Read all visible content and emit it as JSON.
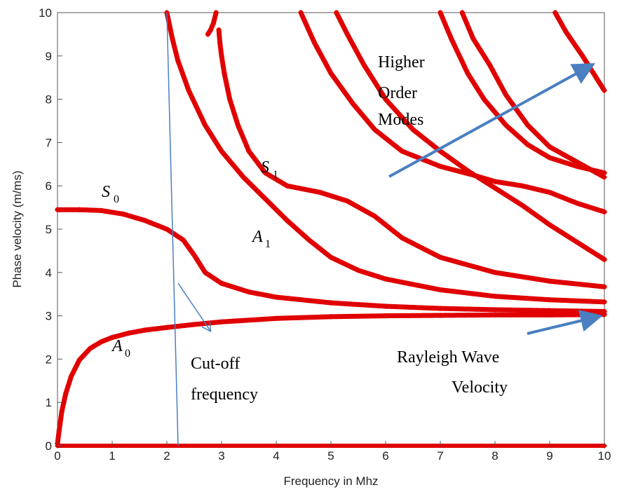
{
  "chart_data": {
    "type": "scatter",
    "xlabel": "Frequency in Mhz",
    "ylabel": "Phase velocity (m/ms)",
    "xlim": [
      0,
      10
    ],
    "ylim": [
      0,
      10
    ],
    "xticks": [
      "0",
      "1",
      "2",
      "3",
      "4",
      "5",
      "6",
      "7",
      "8",
      "9",
      "10"
    ],
    "yticks": [
      "0",
      "1",
      "2",
      "3",
      "4",
      "5",
      "6",
      "7",
      "8",
      "9",
      "10"
    ],
    "grid": false,
    "marker_color": "#e00000",
    "series": [
      {
        "points": [
          [
            0,
            0.05
          ],
          [
            0.03,
            0.35
          ],
          [
            0.08,
            0.8
          ],
          [
            0.15,
            1.2
          ],
          [
            0.25,
            1.6
          ],
          [
            0.4,
            1.98
          ],
          [
            0.6,
            2.25
          ],
          [
            0.8,
            2.4
          ],
          [
            1.0,
            2.5
          ],
          [
            1.3,
            2.6
          ],
          [
            1.6,
            2.67
          ],
          [
            2.0,
            2.73
          ],
          [
            2.5,
            2.8
          ],
          [
            3,
            2.86
          ],
          [
            4,
            2.94
          ],
          [
            5,
            2.98
          ],
          [
            6,
            3.0
          ],
          [
            7,
            3.01
          ],
          [
            8,
            3.02
          ],
          [
            9,
            3.02
          ],
          [
            10,
            3.03
          ]
        ]
      },
      {
        "points": [
          [
            0,
            5.45
          ],
          [
            0.4,
            5.45
          ],
          [
            0.8,
            5.43
          ],
          [
            1.2,
            5.35
          ],
          [
            1.6,
            5.2
          ],
          [
            2.0,
            5.0
          ],
          [
            2.3,
            4.75
          ],
          [
            2.5,
            4.4
          ],
          [
            2.7,
            4.0
          ],
          [
            3.0,
            3.75
          ],
          [
            3.5,
            3.55
          ],
          [
            4.0,
            3.43
          ],
          [
            5,
            3.3
          ],
          [
            6,
            3.22
          ],
          [
            7,
            3.17
          ],
          [
            8,
            3.14
          ],
          [
            9,
            3.12
          ],
          [
            10,
            3.1
          ]
        ]
      },
      {
        "points": [
          [
            0,
            0.0
          ],
          [
            10,
            0.0
          ]
        ]
      },
      {
        "points": [
          [
            2.0,
            10.0
          ],
          [
            2.1,
            9.4
          ],
          [
            2.2,
            8.9
          ],
          [
            2.4,
            8.2
          ],
          [
            2.7,
            7.4
          ],
          [
            3.0,
            6.8
          ],
          [
            3.4,
            6.2
          ],
          [
            3.8,
            5.7
          ],
          [
            4.2,
            5.2
          ],
          [
            4.6,
            4.75
          ],
          [
            5,
            4.35
          ],
          [
            5.5,
            4.05
          ],
          [
            6,
            3.85
          ],
          [
            7,
            3.6
          ],
          [
            8,
            3.45
          ],
          [
            9,
            3.37
          ],
          [
            10,
            3.32
          ]
        ]
      },
      {
        "points": [
          [
            2.75,
            9.5
          ],
          [
            2.8,
            9.6
          ],
          [
            2.85,
            9.75
          ],
          [
            2.9,
            10.0
          ]
        ]
      },
      {
        "points": [
          [
            2.95,
            9.6
          ],
          [
            2.97,
            9.3
          ],
          [
            3.0,
            9.0
          ],
          [
            3.05,
            8.6
          ],
          [
            3.15,
            8.0
          ],
          [
            3.3,
            7.4
          ],
          [
            3.5,
            6.8
          ],
          [
            3.8,
            6.3
          ],
          [
            4.2,
            6.0
          ],
          [
            4.8,
            5.85
          ],
          [
            5.3,
            5.65
          ],
          [
            5.8,
            5.3
          ],
          [
            6.3,
            4.8
          ],
          [
            7,
            4.35
          ],
          [
            8,
            4.0
          ],
          [
            9,
            3.8
          ],
          [
            10,
            3.67
          ]
        ]
      },
      {
        "points": [
          [
            4.45,
            10.0
          ],
          [
            4.7,
            9.3
          ],
          [
            5.0,
            8.6
          ],
          [
            5.4,
            7.9
          ],
          [
            5.8,
            7.3
          ],
          [
            6.3,
            6.8
          ],
          [
            7,
            6.45
          ],
          [
            7.6,
            6.25
          ],
          [
            8,
            6.1
          ],
          [
            8.5,
            6.0
          ],
          [
            9,
            5.85
          ],
          [
            9.5,
            5.6
          ],
          [
            10,
            5.4
          ]
        ]
      },
      {
        "points": [
          [
            5.1,
            10.0
          ],
          [
            5.3,
            9.5
          ],
          [
            5.6,
            8.8
          ],
          [
            6.0,
            8.0
          ],
          [
            6.5,
            7.3
          ],
          [
            7,
            6.8
          ],
          [
            7.5,
            6.35
          ],
          [
            8,
            5.95
          ],
          [
            8.5,
            5.55
          ],
          [
            9,
            5.1
          ],
          [
            9.5,
            4.7
          ],
          [
            10,
            4.3
          ]
        ]
      },
      {
        "points": [
          [
            7.0,
            10.0
          ],
          [
            7.2,
            9.4
          ],
          [
            7.5,
            8.6
          ],
          [
            7.8,
            8.0
          ],
          [
            8.2,
            7.4
          ],
          [
            8.6,
            6.95
          ],
          [
            9.0,
            6.65
          ],
          [
            9.5,
            6.45
          ],
          [
            10,
            6.3
          ]
        ]
      },
      {
        "points": [
          [
            7.4,
            10.0
          ],
          [
            7.6,
            9.4
          ],
          [
            7.9,
            8.8
          ],
          [
            8.2,
            8.1
          ],
          [
            8.6,
            7.4
          ],
          [
            9.0,
            6.9
          ],
          [
            9.5,
            6.55
          ],
          [
            10,
            6.2
          ]
        ]
      },
      {
        "points": [
          [
            9.1,
            10.0
          ],
          [
            9.3,
            9.55
          ],
          [
            9.6,
            9.0
          ],
          [
            9.8,
            8.6
          ],
          [
            10,
            8.2
          ]
        ]
      }
    ],
    "annotations": {
      "higher_order": [
        "Higher",
        "Order",
        "Modes"
      ],
      "s0": "S",
      "s0_sub": "0",
      "s1": "S",
      "s1_sub": "1",
      "a0": "A",
      "a0_sub": "0",
      "a1": "A",
      "a1_sub": "1",
      "cutoff": [
        "Cut-off",
        "frequency"
      ],
      "rayleigh": [
        "Rayleigh Wave",
        "Velocity"
      ],
      "arrow_color": "#4a7fc1"
    }
  }
}
